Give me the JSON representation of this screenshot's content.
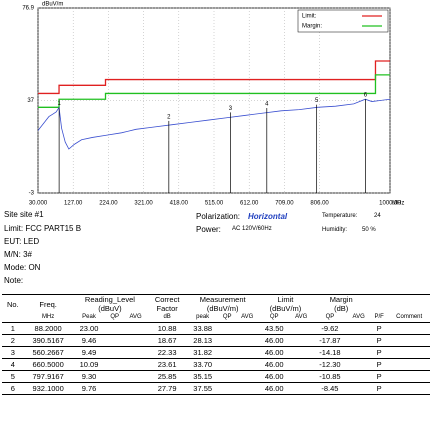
{
  "chart_data": {
    "type": "line",
    "y_unit": "dBuV/m",
    "x_unit": "MHz",
    "xlim": [
      30,
      1000
    ],
    "ylim": [
      -3,
      76.9
    ],
    "yticks": [
      -3,
      37,
      76.9
    ],
    "xticks": [
      {
        "value": 30,
        "label": "30.000"
      },
      {
        "value": 127,
        "label": "127.00"
      },
      {
        "value": 224,
        "label": "224.00"
      },
      {
        "value": 321,
        "label": "321.00"
      },
      {
        "value": 418,
        "label": "418.00"
      },
      {
        "value": 515,
        "label": "515.00"
      },
      {
        "value": 612,
        "label": "612.00"
      },
      {
        "value": 709,
        "label": "709.00"
      },
      {
        "value": 806,
        "label": "806.00"
      },
      {
        "value": 1000,
        "label": "1000.00"
      }
    ],
    "grid": true,
    "legend": "top-right",
    "series": [
      {
        "name": "Limit:",
        "color": "#e02020",
        "x": [
          30,
          88,
          88,
          216,
          216,
          960,
          960,
          1000
        ],
        "values": [
          40,
          40,
          43.5,
          43.5,
          46,
          46,
          54,
          54
        ]
      },
      {
        "name": "Margin:",
        "color": "#20c020",
        "x": [
          30,
          88,
          88,
          216,
          216,
          960,
          960,
          1000
        ],
        "values": [
          34,
          34,
          37.5,
          37.5,
          40,
          40,
          48,
          48
        ]
      }
    ],
    "trace": {
      "color": "#3a4fd0",
      "x": [
        30,
        40,
        50,
        60,
        70,
        80,
        88,
        95,
        105,
        115,
        130,
        150,
        180,
        220,
        260,
        300,
        350,
        400,
        450,
        500,
        550,
        600,
        650,
        700,
        750,
        800,
        850,
        900,
        932,
        950,
        1000
      ],
      "values": [
        24,
        26,
        28,
        30,
        31,
        32,
        33.9,
        25,
        19,
        16,
        18,
        20,
        21,
        22,
        23,
        24.5,
        25.5,
        26.5,
        27.5,
        28.5,
        29.5,
        30.5,
        31.5,
        32.5,
        33,
        34,
        34.5,
        35.5,
        37.5,
        36.5,
        37.5
      ]
    },
    "markers": [
      {
        "label": "1",
        "x": 88.2,
        "y": 33.88
      },
      {
        "label": "2",
        "x": 390.5167,
        "y": 28.13
      },
      {
        "label": "3",
        "x": 560.2667,
        "y": 31.82
      },
      {
        "label": "4",
        "x": 660.5,
        "y": 33.7
      },
      {
        "label": "5",
        "x": 797.9167,
        "y": 35.15
      },
      {
        "label": "6",
        "x": 932.1,
        "y": 37.55
      }
    ]
  },
  "info": {
    "site": "Site  site #1",
    "limit": "Limit: FCC PART15 B",
    "eut": "EUT: LED",
    "mn": "M/N:  3#",
    "mode": "Mode:  ON",
    "note": "Note:",
    "polarization_label": "Polarization:",
    "polarization": "Horizontal",
    "power_label": "Power:",
    "power": "AC 120V/60Hz",
    "temperature_label": "Temperature:",
    "temperature": "24",
    "humidity_label": "Humidity:",
    "humidity": "50 %"
  },
  "table": {
    "header1": [
      "No.",
      "Freq.",
      "Reading_Level\n(dBuV)",
      "Correct\nFactor",
      "Measurement\n(dBuV/m)",
      "Limit\n(dBuV/m)",
      "Margin\n(dB)"
    ],
    "header2": [
      "MHz",
      "Peak",
      "QP",
      "AVG",
      "dB",
      "peak",
      "QP",
      "AVG",
      "QP",
      "AVG",
      "QP",
      "AVG",
      "P/F",
      "Comment"
    ],
    "rows": [
      [
        "1",
        "88.2000",
        "23.00",
        null,
        null,
        "10.88",
        "33.88",
        null,
        null,
        "43.50",
        null,
        "-9.62",
        null,
        "P",
        null
      ],
      [
        "2",
        "390.5167",
        "9.46",
        null,
        null,
        "18.67",
        "28.13",
        null,
        null,
        "46.00",
        null,
        "-17.87",
        null,
        "P",
        null
      ],
      [
        "3",
        "560.2667",
        "9.49",
        null,
        null,
        "22.33",
        "31.82",
        null,
        null,
        "46.00",
        null,
        "-14.18",
        null,
        "P",
        null
      ],
      [
        "4",
        "660.5000",
        "10.09",
        null,
        null,
        "23.61",
        "33.70",
        null,
        null,
        "46.00",
        null,
        "-12.30",
        null,
        "P",
        null
      ],
      [
        "5",
        "797.9167",
        "9.30",
        null,
        null,
        "25.85",
        "35.15",
        null,
        null,
        "46.00",
        null,
        "-10.85",
        null,
        "P",
        null
      ],
      [
        "6",
        "932.1000",
        "9.76",
        null,
        null,
        "27.79",
        "37.55",
        null,
        null,
        "46.00",
        null,
        "-8.45",
        null,
        "P",
        null
      ]
    ]
  }
}
